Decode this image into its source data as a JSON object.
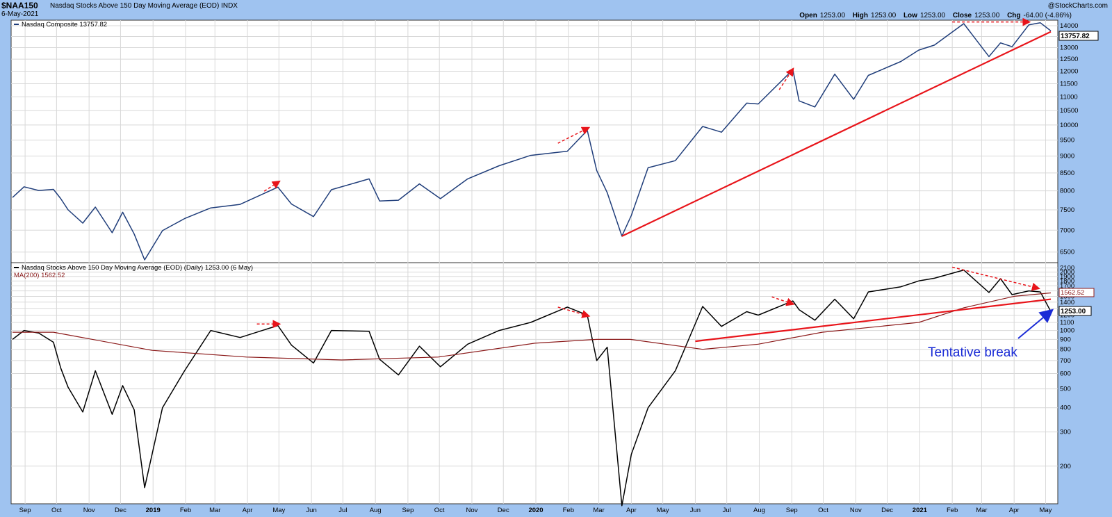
{
  "header": {
    "symbol": "$NAA150",
    "description": "Nasdaq Stocks Above 150 Day Moving Average (EOD)",
    "exchange": "INDX",
    "date": "6-May-2021",
    "brand": "@StockCharts.com",
    "open_label": "Open",
    "open": "1253.00",
    "high_label": "High",
    "high": "1253.00",
    "low_label": "Low",
    "low": "1253.00",
    "close_label": "Close",
    "close": "1253.00",
    "chg_label": "Chg",
    "chg": "-64.00 (-4.86%)"
  },
  "chart_data": [
    {
      "type": "line",
      "legend": "Nasdaq Composite 13757.82",
      "series": [
        {
          "name": "Nasdaq Composite",
          "color": "#1f3d7a",
          "points": [
            [
              "2018-08-20",
              7820
            ],
            [
              "2018-08-31",
              8110
            ],
            [
              "2018-09-14",
              8010
            ],
            [
              "2018-09-28",
              8040
            ],
            [
              "2018-10-05",
              7790
            ],
            [
              "2018-10-12",
              7500
            ],
            [
              "2018-10-26",
              7170
            ],
            [
              "2018-11-07",
              7570
            ],
            [
              "2018-11-23",
              6940
            ],
            [
              "2018-12-03",
              7440
            ],
            [
              "2018-12-14",
              6910
            ],
            [
              "2018-12-24",
              6330
            ],
            [
              "2019-01-10",
              6990
            ],
            [
              "2019-01-31",
              7280
            ],
            [
              "2019-02-25",
              7550
            ],
            [
              "2019-03-25",
              7640
            ],
            [
              "2019-04-30",
              8100
            ],
            [
              "2019-05-13",
              7650
            ],
            [
              "2019-06-03",
              7330
            ],
            [
              "2019-06-20",
              8030
            ],
            [
              "2019-07-26",
              8330
            ],
            [
              "2019-08-05",
              7730
            ],
            [
              "2019-08-23",
              7750
            ],
            [
              "2019-09-12",
              8190
            ],
            [
              "2019-10-02",
              7790
            ],
            [
              "2019-10-28",
              8330
            ],
            [
              "2019-11-27",
              8710
            ],
            [
              "2019-12-27",
              9020
            ],
            [
              "2020-01-31",
              9150
            ],
            [
              "2020-02-19",
              9820
            ],
            [
              "2020-02-28",
              8570
            ],
            [
              "2020-03-09",
              7950
            ],
            [
              "2020-03-23",
              6860
            ],
            [
              "2020-04-01",
              7360
            ],
            [
              "2020-04-17",
              8650
            ],
            [
              "2020-05-13",
              8860
            ],
            [
              "2020-06-08",
              9950
            ],
            [
              "2020-06-26",
              9760
            ],
            [
              "2020-07-20",
              10770
            ],
            [
              "2020-07-31",
              10740
            ],
            [
              "2020-09-02",
              12060
            ],
            [
              "2020-09-08",
              10850
            ],
            [
              "2020-09-23",
              10630
            ],
            [
              "2020-10-12",
              11880
            ],
            [
              "2020-10-30",
              10910
            ],
            [
              "2020-11-13",
              11830
            ],
            [
              "2020-12-14",
              12400
            ],
            [
              "2020-12-31",
              12890
            ],
            [
              "2021-01-15",
              13110
            ],
            [
              "2021-02-12",
              14100
            ],
            [
              "2021-03-08",
              12610
            ],
            [
              "2021-03-19",
              13210
            ],
            [
              "2021-03-30",
              13040
            ],
            [
              "2021-04-15",
              14040
            ],
            [
              "2021-04-26",
              14140
            ],
            [
              "2021-05-06",
              13758
            ]
          ]
        }
      ],
      "annotations": {
        "trendline": [
          [
            "2020-03-23",
            6860
          ],
          [
            "2021-05-06",
            13720
          ]
        ],
        "arrows": [
          [
            [
              "2019-04-17",
              7990
            ],
            [
              "2019-05-01",
              8250
            ]
          ],
          [
            [
              "2020-01-22",
              9400
            ],
            [
              "2020-02-20",
              9900
            ]
          ],
          [
            [
              "2020-08-20",
              11270
            ],
            [
              "2020-09-02",
              12080
            ]
          ],
          [
            [
              "2021-02-01",
              14180
            ],
            [
              "2021-04-15",
              14180
            ]
          ]
        ]
      },
      "ylim": [
        6300,
        14200
      ],
      "yscale": "log",
      "yticks": [
        6500,
        7000,
        7500,
        8000,
        8500,
        9000,
        9500,
        10000,
        10500,
        11000,
        11500,
        12000,
        12500,
        13000,
        13500,
        14000
      ],
      "last_value_label": "13757.82"
    },
    {
      "type": "line",
      "legend": "Nasdaq Stocks Above 150 Day Moving Average (EOD) (Daily) 1253.00 (6 May)",
      "ma_legend": "MA(200) 1562.52",
      "series": [
        {
          "name": "Nasdaq Stocks Above 150 Day Moving Average (EOD)",
          "color": "#000000",
          "points": [
            [
              "2018-08-20",
              900
            ],
            [
              "2018-08-31",
              1000
            ],
            [
              "2018-09-14",
              970
            ],
            [
              "2018-09-28",
              870
            ],
            [
              "2018-10-05",
              640
            ],
            [
              "2018-10-12",
              510
            ],
            [
              "2018-10-26",
              380
            ],
            [
              "2018-11-07",
              620
            ],
            [
              "2018-11-23",
              370
            ],
            [
              "2018-12-03",
              520
            ],
            [
              "2018-12-14",
              390
            ],
            [
              "2018-12-24",
              155
            ],
            [
              "2019-01-10",
              400
            ],
            [
              "2019-01-31",
              620
            ],
            [
              "2019-02-25",
              1000
            ],
            [
              "2019-03-25",
              920
            ],
            [
              "2019-04-30",
              1060
            ],
            [
              "2019-05-13",
              840
            ],
            [
              "2019-06-03",
              680
            ],
            [
              "2019-06-20",
              1000
            ],
            [
              "2019-07-26",
              990
            ],
            [
              "2019-08-05",
              710
            ],
            [
              "2019-08-23",
              590
            ],
            [
              "2019-09-12",
              830
            ],
            [
              "2019-10-02",
              650
            ],
            [
              "2019-10-28",
              850
            ],
            [
              "2019-11-27",
              1000
            ],
            [
              "2019-12-27",
              1100
            ],
            [
              "2020-01-31",
              1320
            ],
            [
              "2020-02-19",
              1200
            ],
            [
              "2020-02-28",
              700
            ],
            [
              "2020-03-09",
              820
            ],
            [
              "2020-03-23",
              125
            ],
            [
              "2020-04-01",
              230
            ],
            [
              "2020-04-17",
              400
            ],
            [
              "2020-05-13",
              620
            ],
            [
              "2020-06-08",
              1330
            ],
            [
              "2020-06-26",
              1050
            ],
            [
              "2020-07-20",
              1250
            ],
            [
              "2020-07-31",
              1200
            ],
            [
              "2020-09-02",
              1420
            ],
            [
              "2020-09-08",
              1280
            ],
            [
              "2020-09-23",
              1130
            ],
            [
              "2020-10-12",
              1450
            ],
            [
              "2020-10-30",
              1150
            ],
            [
              "2020-11-13",
              1580
            ],
            [
              "2020-12-14",
              1680
            ],
            [
              "2020-12-31",
              1800
            ],
            [
              "2021-01-15",
              1860
            ],
            [
              "2021-02-12",
              2050
            ],
            [
              "2021-03-08",
              1570
            ],
            [
              "2021-03-19",
              1850
            ],
            [
              "2021-03-30",
              1530
            ],
            [
              "2021-04-15",
              1600
            ],
            [
              "2021-04-26",
              1580
            ],
            [
              "2021-05-06",
              1253
            ]
          ]
        },
        {
          "name": "MA(200)",
          "color": "#8b1a1a",
          "points": [
            [
              "2018-08-20",
              980
            ],
            [
              "2018-09-28",
              980
            ],
            [
              "2018-12-31",
              790
            ],
            [
              "2019-03-31",
              730
            ],
            [
              "2019-06-30",
              705
            ],
            [
              "2019-09-30",
              730
            ],
            [
              "2019-12-31",
              860
            ],
            [
              "2020-02-28",
              900
            ],
            [
              "2020-03-31",
              900
            ],
            [
              "2020-06-08",
              800
            ],
            [
              "2020-07-31",
              850
            ],
            [
              "2020-09-30",
              980
            ],
            [
              "2020-12-31",
              1100
            ],
            [
              "2021-02-12",
              1310
            ],
            [
              "2021-04-01",
              1500
            ],
            [
              "2021-05-06",
              1562
            ]
          ]
        }
      ],
      "annotations": {
        "trendline": [
          [
            "2020-06-01",
            880
          ],
          [
            "2021-05-06",
            1450
          ]
        ],
        "arrows": [
          [
            [
              "2019-04-10",
              1080
            ],
            [
              "2019-05-01",
              1080
            ]
          ],
          [
            [
              "2020-01-22",
              1320
            ],
            [
              "2020-02-20",
              1190
            ]
          ],
          [
            [
              "2020-08-13",
              1490
            ],
            [
              "2020-09-02",
              1370
            ]
          ],
          [
            [
              "2021-02-01",
              2120
            ],
            [
              "2021-04-24",
              1650
            ]
          ]
        ],
        "callout": "Tentative break"
      },
      "ylim": [
        130,
        2200
      ],
      "yscale": "log",
      "yticks": [
        200,
        300,
        400,
        500,
        600,
        700,
        800,
        900,
        1000,
        1100,
        1200,
        1300,
        1400,
        1500,
        1600,
        1700,
        1800,
        1900,
        2000,
        2100
      ],
      "last_value_label": "1253.00",
      "ma_value_label": "1562.52"
    }
  ],
  "x_axis": {
    "labels": [
      {
        "date": "2018-09-01",
        "text": "Sep",
        "bold": false
      },
      {
        "date": "2018-10-01",
        "text": "Oct",
        "bold": false
      },
      {
        "date": "2018-11-01",
        "text": "Nov",
        "bold": false
      },
      {
        "date": "2018-12-01",
        "text": "Dec",
        "bold": false
      },
      {
        "date": "2019-01-01",
        "text": "2019",
        "bold": true
      },
      {
        "date": "2019-02-01",
        "text": "Feb",
        "bold": false
      },
      {
        "date": "2019-03-01",
        "text": "Mar",
        "bold": false
      },
      {
        "date": "2019-04-01",
        "text": "Apr",
        "bold": false
      },
      {
        "date": "2019-05-01",
        "text": "May",
        "bold": false
      },
      {
        "date": "2019-06-01",
        "text": "Jun",
        "bold": false
      },
      {
        "date": "2019-07-01",
        "text": "Jul",
        "bold": false
      },
      {
        "date": "2019-08-01",
        "text": "Aug",
        "bold": false
      },
      {
        "date": "2019-09-01",
        "text": "Sep",
        "bold": false
      },
      {
        "date": "2019-10-01",
        "text": "Oct",
        "bold": false
      },
      {
        "date": "2019-11-01",
        "text": "Nov",
        "bold": false
      },
      {
        "date": "2019-12-01",
        "text": "Dec",
        "bold": false
      },
      {
        "date": "2020-01-01",
        "text": "2020",
        "bold": true
      },
      {
        "date": "2020-02-01",
        "text": "Feb",
        "bold": false
      },
      {
        "date": "2020-03-01",
        "text": "Mar",
        "bold": false
      },
      {
        "date": "2020-04-01",
        "text": "Apr",
        "bold": false
      },
      {
        "date": "2020-05-01",
        "text": "May",
        "bold": false
      },
      {
        "date": "2020-06-01",
        "text": "Jun",
        "bold": false
      },
      {
        "date": "2020-07-01",
        "text": "Jul",
        "bold": false
      },
      {
        "date": "2020-08-01",
        "text": "Aug",
        "bold": false
      },
      {
        "date": "2020-09-01",
        "text": "Sep",
        "bold": false
      },
      {
        "date": "2020-10-01",
        "text": "Oct",
        "bold": false
      },
      {
        "date": "2020-11-01",
        "text": "Nov",
        "bold": false
      },
      {
        "date": "2020-12-01",
        "text": "Dec",
        "bold": false
      },
      {
        "date": "2021-01-01",
        "text": "2021",
        "bold": true
      },
      {
        "date": "2021-02-01",
        "text": "Feb",
        "bold": false
      },
      {
        "date": "2021-03-01",
        "text": "Mar",
        "bold": false
      },
      {
        "date": "2021-04-01",
        "text": "Apr",
        "bold": false
      },
      {
        "date": "2021-05-01",
        "text": "May",
        "bold": false
      }
    ]
  },
  "colors": {
    "background": "#9fc3f0",
    "panel": "#ffffff",
    "price_line": "#1f3d7a",
    "breadth_line": "#000000",
    "ma_line": "#8b1a1a",
    "annotation": "#e8141a",
    "callout": "#1a2bd6",
    "grid": "#d8d8d8"
  }
}
